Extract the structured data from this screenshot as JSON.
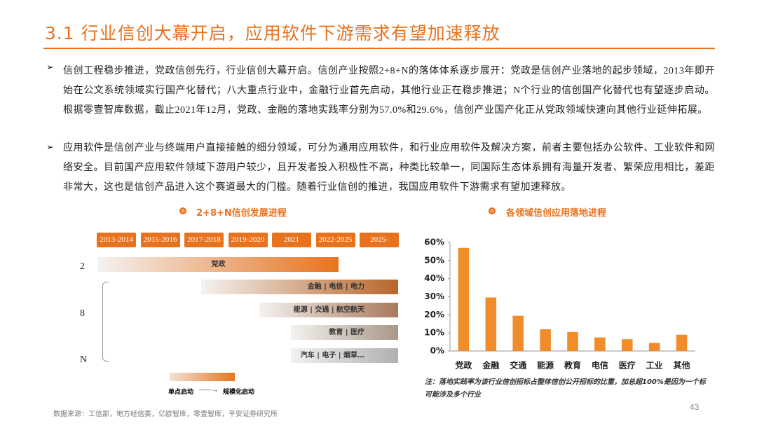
{
  "header": {
    "title": "3.1 行业信创大幕开启，应用软件下游需求有望加速释放"
  },
  "bullets": [
    "信创工程稳步推进，党政信创先行，行业信创大幕开启。信创产业按照2+8+N的落体体系逐步展开：党政是信创产业落地的起步领域，2013年即开始在公文系统领域实行国产化替代；八大重点行业中，金融行业首先启动，其他行业正在稳步推进；N个行业的信创国产化替代也有望逐步启动。根据零壹智库数据，截止2021年12月，党政、金融的落地实践率分别为57.0%和29.6%，信创产业国产化正从党政领域快速向其他行业延伸拓展。",
    "应用软件是信创产业与终端用户直接接触的细分领域，可分为通用应用软件，和行业应用软件及解决方案，前者主要包括办公软件、工业软件和网络安全。目前国产应用软件领域下游用户较少，且开发者投入积极性不高，种类比较单一，同国际生态体系拥有海量开发者、繁荣应用相比，差距非常大，这也是信创产品进入这个赛道最大的门槛。随着行业信创的推进，我国应用软件下游需求有望加速释放。"
  ],
  "timeline": {
    "title": "2+8+N信创发展进程",
    "periods": [
      "2013-2014",
      "2015-2016",
      "2017-2018",
      "2019-2020",
      "2021",
      "2022-2025",
      "2025-"
    ],
    "rows": [
      "2",
      "8",
      "N"
    ],
    "tracks": [
      "党政",
      "金融 | 电信 | 电力",
      "能源 | 交通 | 航空航天",
      "教育 | 医疗",
      "汽车 | 电子 | 烟草…"
    ],
    "legend": [
      "单点启动",
      "规模化启动"
    ]
  },
  "chart_data": {
    "type": "bar",
    "title": "各领域信创应用落地进程",
    "categories": [
      "党政",
      "金融",
      "交通",
      "能源",
      "教育",
      "电信",
      "医疗",
      "工业",
      "其他"
    ],
    "values": [
      57.0,
      29.6,
      19.5,
      12,
      10.5,
      7.5,
      6.5,
      4.5,
      9
    ],
    "color": "#f08c2a",
    "ylim": [
      0,
      60
    ],
    "yticks": [
      {
        "value": 0,
        "label": "0%"
      },
      {
        "value": 10,
        "label": "10%"
      },
      {
        "value": 20,
        "label": "20%"
      },
      {
        "value": 30,
        "label": "30%"
      },
      {
        "value": 40,
        "label": "40%"
      },
      {
        "value": 50,
        "label": "50%"
      },
      {
        "value": 60,
        "label": "60%"
      }
    ],
    "note": "注：落地实践率为该行业信创招标占整体信创公开招标的比重，加总超100%是因为一个标可能涉及多个行业"
  },
  "footer": {
    "source": "数据来源：工信部，地方经信委，亿欧智库，零壹智库，平安证券研究所",
    "page": "43"
  }
}
